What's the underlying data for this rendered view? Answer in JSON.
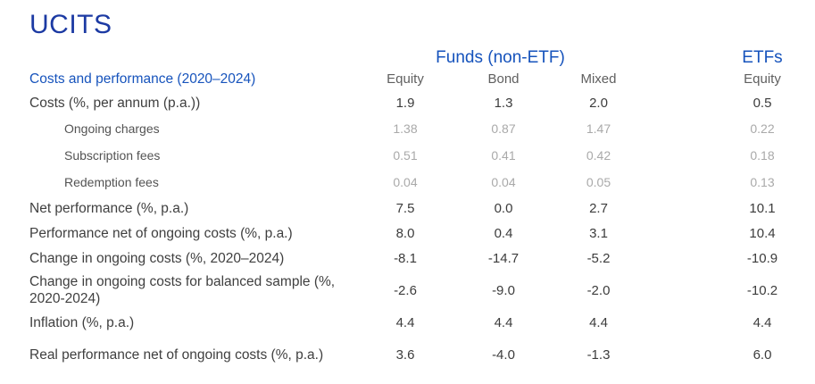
{
  "page": {
    "title": "UCITS"
  },
  "colors": {
    "title_blue": "#1c3aa3",
    "header_blue": "#1653bc",
    "label_dark": "#3f3f3f",
    "value_dark": "#3c3c3c",
    "column_header_gray": "#5f5f5f",
    "muted_value_gray": "#a9a9a9",
    "background": "#ffffff"
  },
  "table": {
    "group_headers": {
      "funds": "Funds (non-ETF)",
      "etfs": "ETFs"
    },
    "corner_label": "Costs and performance (2020–2024)",
    "column_headers": [
      "Equity",
      "Bond",
      "Mixed",
      "Equity"
    ],
    "rows": [
      {
        "label": "Costs (%, per annum (p.a.))",
        "indent": false,
        "muted": false,
        "values": [
          "1.9",
          "1.3",
          "2.0",
          "0.5"
        ]
      },
      {
        "label": "Ongoing charges",
        "indent": true,
        "muted": true,
        "values": [
          "1.38",
          "0.87",
          "1.47",
          "0.22"
        ]
      },
      {
        "label": "Subscription fees",
        "indent": true,
        "muted": true,
        "values": [
          "0.51",
          "0.41",
          "0.42",
          "0.18"
        ]
      },
      {
        "label": "Redemption fees",
        "indent": true,
        "muted": true,
        "values": [
          "0.04",
          "0.04",
          "0.05",
          "0.13"
        ]
      },
      {
        "label": "Net performance (%, p.a.)",
        "indent": false,
        "muted": false,
        "values": [
          "7.5",
          "0.0",
          "2.7",
          "10.1"
        ]
      },
      {
        "label": "Performance net of ongoing costs (%, p.a.)",
        "indent": false,
        "muted": false,
        "values": [
          "8.0",
          "0.4",
          "3.1",
          "10.4"
        ]
      },
      {
        "label": "Change in ongoing costs (%, 2020–2024)",
        "indent": false,
        "muted": false,
        "values": [
          "-8.1",
          "-14.7",
          "-5.2",
          "-10.9"
        ]
      },
      {
        "label": "Change in ongoing costs for balanced sample (%, 2020-2024)",
        "indent": false,
        "muted": false,
        "values": [
          "-2.6",
          "-9.0",
          "-2.0",
          "-10.2"
        ]
      },
      {
        "label": "Inflation (%, p.a.)",
        "indent": false,
        "muted": false,
        "values": [
          "4.4",
          "4.4",
          "4.4",
          "4.4"
        ]
      },
      {
        "label": "Real performance net of ongoing costs (%, p.a.)",
        "indent": false,
        "muted": false,
        "values": [
          "3.6",
          "-4.0",
          "-1.3",
          "6.0"
        ]
      }
    ]
  }
}
